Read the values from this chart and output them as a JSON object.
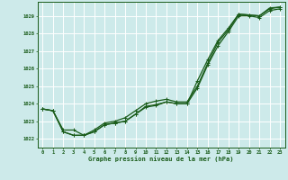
{
  "xlabel": "Graphe pression niveau de la mer (hPa)",
  "bg_color": "#cdeaea",
  "grid_color": "#b0d8d8",
  "line_color": "#1a5c1a",
  "xlim": [
    -0.5,
    23.5
  ],
  "ylim": [
    1021.5,
    1029.8
  ],
  "xticks": [
    0,
    1,
    2,
    3,
    4,
    5,
    6,
    7,
    8,
    9,
    10,
    11,
    12,
    13,
    14,
    15,
    16,
    17,
    18,
    19,
    20,
    21,
    22,
    23
  ],
  "yticks": [
    1022,
    1023,
    1024,
    1025,
    1026,
    1027,
    1028,
    1029
  ],
  "series1_x": [
    0,
    1,
    2,
    3,
    4,
    5,
    6,
    7,
    8,
    9,
    10,
    11,
    12,
    13,
    14,
    15,
    16,
    17,
    18,
    19,
    20,
    21,
    22,
    23
  ],
  "series1_y": [
    1023.7,
    1023.6,
    1022.4,
    1022.2,
    1022.2,
    1022.4,
    1022.8,
    1022.9,
    1023.0,
    1023.4,
    1023.8,
    1023.9,
    1024.1,
    1024.0,
    1024.0,
    1024.9,
    1026.2,
    1027.3,
    1028.1,
    1029.0,
    1029.0,
    1028.9,
    1029.3,
    1029.4
  ],
  "series2_x": [
    0,
    1,
    2,
    3,
    4,
    5,
    6,
    7,
    8,
    9,
    10,
    11,
    12,
    13,
    14,
    15,
    16,
    17,
    18,
    19,
    20,
    21,
    22,
    23
  ],
  "series2_y": [
    1023.7,
    1023.6,
    1022.5,
    1022.5,
    1022.2,
    1022.5,
    1022.9,
    1023.0,
    1023.2,
    1023.6,
    1024.0,
    1024.15,
    1024.25,
    1024.1,
    1024.1,
    1025.0,
    1026.3,
    1027.5,
    1028.2,
    1029.1,
    1029.05,
    1029.0,
    1029.4,
    1029.5
  ],
  "series3_x": [
    0,
    1,
    2,
    3,
    4,
    5,
    6,
    7,
    8,
    9,
    10,
    11,
    12,
    13,
    14,
    15,
    16,
    17,
    18,
    19,
    20,
    21,
    22,
    23
  ],
  "series3_y": [
    1023.7,
    1023.6,
    1022.4,
    1022.2,
    1022.2,
    1022.4,
    1022.8,
    1022.9,
    1023.0,
    1023.4,
    1023.85,
    1023.95,
    1024.1,
    1024.0,
    1024.0,
    1025.3,
    1026.5,
    1027.6,
    1028.3,
    1029.1,
    1029.05,
    1029.0,
    1029.45,
    1029.5
  ]
}
